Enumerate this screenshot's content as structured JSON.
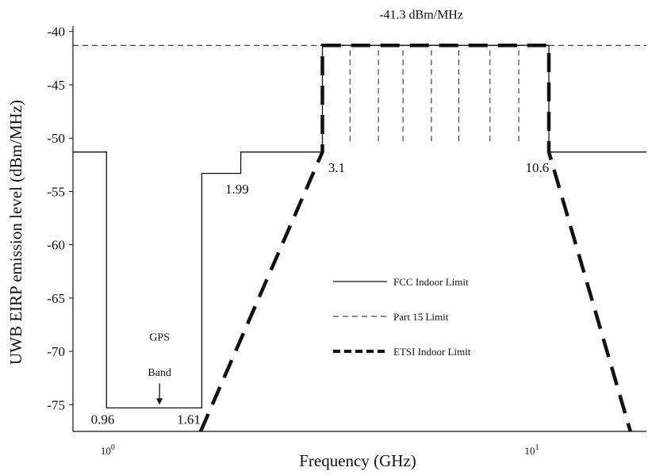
{
  "chart_data": {
    "type": "line",
    "title": "",
    "xlabel": "Frequency (GHz)",
    "ylabel": "UWB EIRP emission level (dBm/MHz)",
    "x_scale": "log",
    "xlim": [
      0.8,
      18
    ],
    "ylim": [
      -77.5,
      -39.5
    ],
    "xticks": [
      {
        "value": 1,
        "base": "10",
        "exp": "0"
      },
      {
        "value": 10,
        "base": "10",
        "exp": "1"
      }
    ],
    "yticks": [
      {
        "value": -40,
        "label": "-40"
      },
      {
        "value": -45,
        "label": "-45"
      },
      {
        "value": -50,
        "label": "-50"
      },
      {
        "value": -55,
        "label": "-55"
      },
      {
        "value": -60,
        "label": "-60"
      },
      {
        "value": -65,
        "label": "-65"
      },
      {
        "value": -70,
        "label": "-70"
      },
      {
        "value": -75,
        "label": "-75"
      }
    ],
    "grid": false,
    "legend_position": "center-right",
    "series": [
      {
        "name": "FCC Indoor Limit",
        "style": "solid",
        "points": [
          [
            0.8,
            -51.3
          ],
          [
            0.96,
            -51.3
          ],
          [
            0.96,
            -75.3
          ],
          [
            1.61,
            -75.3
          ],
          [
            1.61,
            -53.3
          ],
          [
            1.99,
            -53.3
          ],
          [
            1.99,
            -51.3
          ],
          [
            3.1,
            -51.3
          ],
          [
            3.1,
            -41.3
          ],
          [
            10.6,
            -41.3
          ],
          [
            10.6,
            -51.3
          ],
          [
            18,
            -51.3
          ]
        ]
      },
      {
        "name": "Part 15 Limit",
        "style": "dashed",
        "points": [
          [
            0.8,
            -41.3
          ],
          [
            0.96,
            -41.3
          ],
          [
            3.1,
            -41.3
          ],
          [
            10.6,
            -41.3
          ],
          [
            18,
            -41.3
          ]
        ]
      },
      {
        "name": "ETSI Indoor Limit",
        "style": "thick-dashed",
        "points": [
          [
            1.6,
            -77.5
          ],
          [
            3.1,
            -51.3
          ],
          [
            3.1,
            -41.3
          ],
          [
            10.6,
            -41.3
          ],
          [
            10.6,
            -51.3
          ],
          [
            16.5,
            -77.5
          ]
        ]
      }
    ],
    "vertical_dashed_lines": {
      "x": [
        3.6,
        4.2,
        4.8,
        5.6,
        6.5,
        7.7,
        9.0
      ],
      "y_from": -50.3,
      "y_to": -41.3
    },
    "annotations": [
      {
        "text": "-41.3 dBm/MHz",
        "x": 5.3,
        "y": -38.8
      },
      {
        "text": "0.96",
        "x": 0.94,
        "y": -76.8
      },
      {
        "text": "1.61",
        "x": 1.5,
        "y": -76.8
      },
      {
        "text": "1.99",
        "x": 1.95,
        "y": -55.2
      },
      {
        "text": "3.1",
        "x": 3.35,
        "y": -53.2
      },
      {
        "text": "10.6",
        "x": 9.95,
        "y": -53.2
      },
      {
        "text": "GPS",
        "x": 1.28,
        "y": -69.0
      },
      {
        "text": "Band",
        "x": 1.28,
        "y": -72.3
      }
    ],
    "arrow": {
      "x": 1.28,
      "y_from": -73.0,
      "y_to": -75.0
    }
  }
}
